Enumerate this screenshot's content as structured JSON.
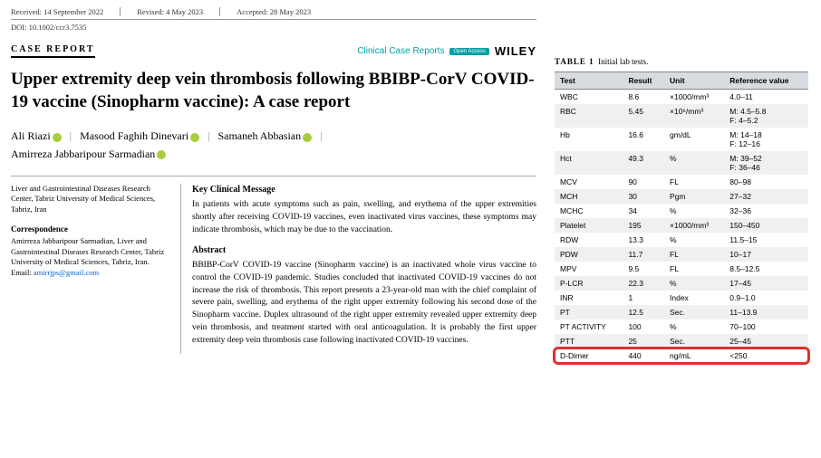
{
  "meta": {
    "received": "Received: 14 September 2022",
    "revised": "Revised: 4 May 2023",
    "accepted": "Accepted: 28 May 2023",
    "doi": "DOI: 10.1002/ccr3.7535"
  },
  "header": {
    "type": "CASE REPORT",
    "journal": "Clinical Case Reports",
    "badge": "Open Access",
    "publisher": "WILEY"
  },
  "title": "Upper extremity deep vein thrombosis following BBIBP-CorV COVID-19 vaccine (Sinopharm vaccine): A case report",
  "authors": [
    "Ali Riazi",
    "Masood Faghih Dinevari",
    "Samaneh Abbasian",
    "Amirreza Jabbaripour Sarmadian"
  ],
  "affiliation": {
    "text": "Liver and Gastrointestinal Diseases Research Center, Tabriz University of Medical Sciences, Tabriz, Iran",
    "corr_head": "Correspondence",
    "corr_body": "Amirreza Jabbaripour Sarmadian, Liver and Gastrointestinal Diseases Research Center, Tabriz University of Medical Sciences, Tabriz, Iran.",
    "email_label": "Email: ",
    "email": "amirrjps@gmail.com"
  },
  "sections": {
    "kcm_head": "Key Clinical Message",
    "kcm_body": "In patients with acute symptoms such as pain, swelling, and erythema of the upper extremities shortly after receiving COVID-19 vaccines, even inactivated virus vaccines, these symptoms may indicate thrombosis, which may be due to the vaccination.",
    "abs_head": "Abstract",
    "abs_body": "BBIBP-CorV COVID-19 vaccine (Sinopharm vaccine) is an inactivated whole virus vaccine to control the COVID-19 pandemic. Studies concluded that inactivated COVID-19 vaccines do not increase the risk of thrombosis. This report presents a 23-year-old man with the chief complaint of severe pain, swelling, and erythema of the right upper extremity following his second dose of the Sinopharm vaccine. Duplex ultrasound of the right upper extremity revealed upper extremity deep vein thrombosis, and treatment started with oral anticoagulation. It is probably the first upper extremity deep vein thrombosis case following inactivated COVID-19 vaccines."
  },
  "table": {
    "caption_label": "TABLE 1",
    "caption_text": "Initial lab tests.",
    "columns": [
      "Test",
      "Result",
      "Unit",
      "Reference value"
    ],
    "rows": [
      [
        "WBC",
        "8.6",
        "×1000/mm³",
        "4.0–11"
      ],
      [
        "RBC",
        "5.45",
        "×10⁶/mm³",
        "M: 4.5–5.8\nF: 4–5.2"
      ],
      [
        "Hb",
        "16.6",
        "gm/dL",
        "M: 14–18\nF: 12–16"
      ],
      [
        "Hct",
        "49.3",
        "%",
        "M: 39–52\nF: 36–46"
      ],
      [
        "MCV",
        "90",
        "FL",
        "80–98"
      ],
      [
        "MCH",
        "30",
        "Pgm",
        "27–32"
      ],
      [
        "MCHC",
        "34",
        "%",
        "32–36"
      ],
      [
        "Platelet",
        "195",
        "×1000/mm³",
        "150–450"
      ],
      [
        "RDW",
        "13.3",
        "%",
        "11.5–15"
      ],
      [
        "PDW",
        "11.7",
        "FL",
        "10–17"
      ],
      [
        "MPV",
        "9.5",
        "FL",
        "8.5–12.5"
      ],
      [
        "P-LCR",
        "22.3",
        "%",
        "17–45"
      ],
      [
        "INR",
        "1",
        "Index",
        "0.9–1.0"
      ],
      [
        "PT",
        "12.5",
        "Sec.",
        "11–13.9"
      ],
      [
        "PT ACTIVITY",
        "100",
        "%",
        "70–100"
      ],
      [
        "PTT",
        "25",
        "Sec.",
        "25–45"
      ],
      [
        "D-Dimer",
        "440",
        "ng/mL",
        "<250"
      ]
    ],
    "highlight_row": 16,
    "colors": {
      "header_bg": "#d8dce0",
      "stripe_bg": "#eef0f2",
      "highlight_border": "#e03030"
    }
  }
}
